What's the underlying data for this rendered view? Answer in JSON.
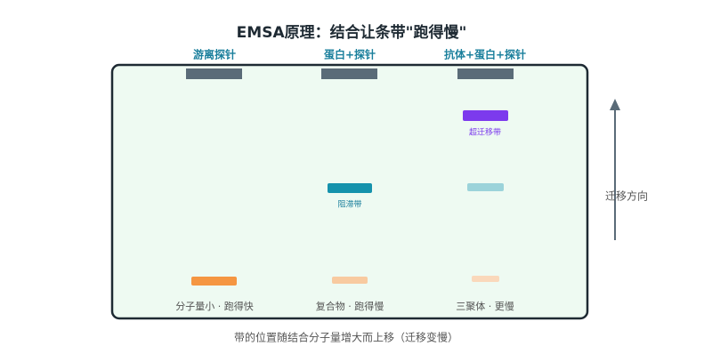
{
  "title": "EMSA原理：结合让条带\"跑得慢\"",
  "lanes": [
    {
      "header": "游离探针",
      "footer": "分子量小 · 跑得快"
    },
    {
      "header": "蛋白+探针",
      "footer": "复合物 · 跑得慢",
      "band_label": "阻滞带"
    },
    {
      "header": "抗体+蛋白+探针",
      "footer": "三聚体 · 更慢",
      "band_label": "超迁移带"
    }
  ],
  "arrow_label": "迁移方向",
  "caption": "带的位置随结合分子量增大而上移（迁移变慢）"
}
